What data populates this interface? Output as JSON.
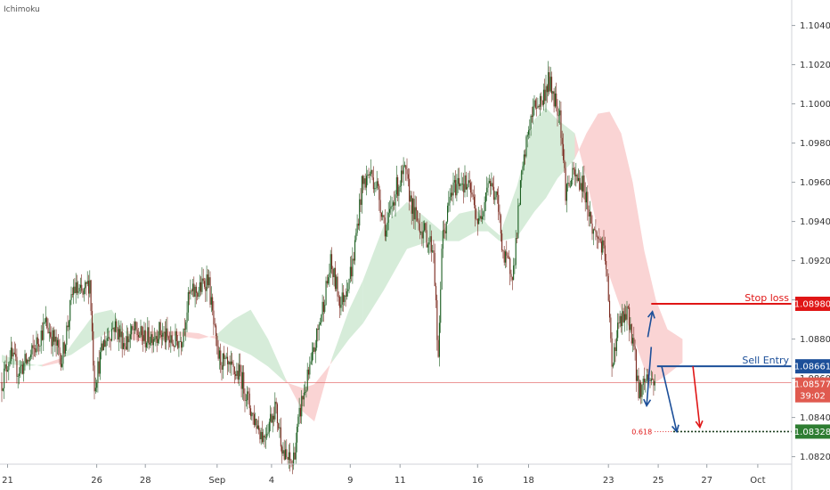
{
  "indicator_label": "Ichimoku",
  "colors": {
    "bull": "#1b5e20",
    "bear": "#7b2a1f",
    "cloud_bull": "#cfe9d2",
    "cloud_bear": "#f9cccc",
    "stop": "#e01616",
    "entry": "#1c4f99",
    "target": "#2e7d32",
    "price_line": "#e57373"
  },
  "chart_data": {
    "type": "candlestick",
    "title": "",
    "xlabel": "",
    "ylabel": "",
    "ylim": [
      1.0803,
      1.1053
    ],
    "y_ticks": [
      "1.08200",
      "1.08400",
      "1.08600",
      "1.08800",
      "1.09000",
      "1.09200",
      "1.09400",
      "1.09600",
      "1.09800",
      "1.10000",
      "1.10200",
      "1.10400"
    ],
    "x_ticks": [
      {
        "label": "21",
        "index": 5
      },
      {
        "label": "26",
        "index": 82
      },
      {
        "label": "28",
        "index": 124
      },
      {
        "label": "Sep",
        "index": 186
      },
      {
        "label": "4",
        "index": 233
      },
      {
        "label": "9",
        "index": 301
      },
      {
        "label": "11",
        "index": 344
      },
      {
        "label": "16",
        "index": 411
      },
      {
        "label": "18",
        "index": 455
      },
      {
        "label": "23",
        "index": 524
      },
      {
        "label": "25",
        "index": 567
      },
      {
        "label": "27",
        "index": 609
      },
      {
        "label": "Oct",
        "index": 653
      }
    ],
    "anchors": [
      [
        0,
        1.0858
      ],
      [
        7,
        1.0872
      ],
      [
        14,
        1.0864
      ],
      [
        24,
        1.087
      ],
      [
        38,
        1.0888
      ],
      [
        52,
        1.087
      ],
      [
        62,
        1.0906
      ],
      [
        70,
        1.0902
      ],
      [
        76,
        1.091
      ],
      [
        80,
        1.0857
      ],
      [
        88,
        1.0878
      ],
      [
        97,
        1.0887
      ],
      [
        106,
        1.0878
      ],
      [
        114,
        1.0884
      ],
      [
        124,
        1.088
      ],
      [
        136,
        1.0884
      ],
      [
        146,
        1.0878
      ],
      [
        155,
        1.088
      ],
      [
        162,
        1.0902
      ],
      [
        172,
        1.0906
      ],
      [
        178,
        1.0912
      ],
      [
        186,
        1.0872
      ],
      [
        196,
        1.0864
      ],
      [
        206,
        1.0862
      ],
      [
        216,
        1.0842
      ],
      [
        226,
        1.083
      ],
      [
        236,
        1.0846
      ],
      [
        244,
        1.082
      ],
      [
        251,
        1.0816
      ],
      [
        259,
        1.0848
      ],
      [
        267,
        1.0866
      ],
      [
        275,
        1.089
      ],
      [
        284,
        1.0918
      ],
      [
        293,
        1.0898
      ],
      [
        303,
        1.0918
      ],
      [
        311,
        1.0958
      ],
      [
        318,
        1.0965
      ],
      [
        324,
        1.0958
      ],
      [
        332,
        1.0935
      ],
      [
        340,
        1.0956
      ],
      [
        348,
        1.0965
      ],
      [
        356,
        1.0944
      ],
      [
        364,
        1.0935
      ],
      [
        373,
        1.0926
      ],
      [
        377,
        1.0866
      ],
      [
        380,
        1.0928
      ],
      [
        388,
        1.0954
      ],
      [
        396,
        1.0962
      ],
      [
        405,
        1.0955
      ],
      [
        412,
        1.0938
      ],
      [
        420,
        1.0962
      ],
      [
        428,
        1.095
      ],
      [
        434,
        1.092
      ],
      [
        442,
        1.0915
      ],
      [
        448,
        1.0957
      ],
      [
        455,
        1.0988
      ],
      [
        461,
        1.1
      ],
      [
        467,
        1.1002
      ],
      [
        472,
        1.1012
      ],
      [
        477,
        1.1004
      ],
      [
        482,
        1.0996
      ],
      [
        487,
        1.0956
      ],
      [
        494,
        1.0963
      ],
      [
        503,
        1.0958
      ],
      [
        510,
        1.0936
      ],
      [
        517,
        1.093
      ],
      [
        522,
        1.0918
      ],
      [
        527,
        1.0868
      ],
      [
        533,
        1.0888
      ],
      [
        541,
        1.0892
      ],
      [
        545,
        1.088
      ],
      [
        550,
        1.0853
      ],
      [
        557,
        1.0861
      ],
      [
        564,
        1.0858
      ]
    ],
    "cloud": {
      "x": [
        0,
        20,
        35,
        50,
        60,
        80,
        95,
        110,
        130,
        150,
        170,
        185,
        200,
        215,
        230,
        245,
        260,
        270,
        285,
        300,
        312,
        330,
        350,
        370,
        380,
        395,
        410,
        420,
        430,
        445,
        460,
        470,
        480,
        495,
        505,
        515,
        525,
        535,
        545,
        555,
        565,
        575,
        588
      ],
      "span_a": [
        1.0872,
        1.0868,
        1.0866,
        1.0868,
        1.0877,
        1.0893,
        1.0895,
        1.088,
        1.0878,
        1.0882,
        1.088,
        1.0882,
        1.089,
        1.0895,
        1.088,
        1.086,
        1.0843,
        1.0838,
        1.087,
        1.0895,
        1.091,
        1.0938,
        1.095,
        1.094,
        1.0935,
        1.0944,
        1.0946,
        1.0938,
        1.0933,
        1.0958,
        1.0992,
        1.0998,
        1.0992,
        1.0985,
        1.0962,
        1.0935,
        1.0912,
        1.0895,
        1.0882,
        1.0865,
        1.0858,
        1.0862,
        1.0868
      ],
      "span_b": [
        1.0868,
        1.0866,
        1.0867,
        1.087,
        1.0872,
        1.088,
        1.0884,
        1.0884,
        1.0884,
        1.0884,
        1.0883,
        1.088,
        1.0876,
        1.0872,
        1.0866,
        1.0858,
        1.0855,
        1.0857,
        1.0868,
        1.088,
        1.0888,
        1.0905,
        1.0926,
        1.093,
        1.093,
        1.093,
        1.0935,
        1.0935,
        1.093,
        1.0932,
        1.0945,
        1.0952,
        1.0962,
        1.0972,
        1.0985,
        1.0995,
        1.0996,
        1.0985,
        1.096,
        1.0925,
        1.09,
        1.0885,
        1.088
      ]
    },
    "last_price": {
      "value": 1.08577,
      "label": "1.08577",
      "countdown": "39:02"
    },
    "levels": [
      {
        "name": "Stop loss",
        "value": 1.0898,
        "label": "1.08980",
        "x_start": 561,
        "color_key": "stop"
      },
      {
        "name": "Sell Entry",
        "value": 1.08661,
        "label": "1.08661",
        "x_start": 566,
        "color_key": "entry"
      },
      {
        "name": "",
        "value": 1.08328,
        "label": "1.08328",
        "x_start": 580,
        "color_key": "target",
        "fib_label": "0.618"
      }
    ],
    "arrows": [
      {
        "x1": 570,
        "y1": 1.08661,
        "x2": 583,
        "y2": 1.08328,
        "color_key": "entry"
      },
      {
        "x1": 597,
        "y1": 1.08661,
        "x2": 603,
        "y2": 1.0835,
        "color_key": "stop"
      },
      {
        "x1": 558,
        "y1": 1.0881,
        "x2": 562,
        "y2": 1.0894,
        "color_key": "entry"
      },
      {
        "x1": 561,
        "y1": 1.0876,
        "x2": 557,
        "y2": 1.0846,
        "color_key": "entry"
      }
    ]
  }
}
